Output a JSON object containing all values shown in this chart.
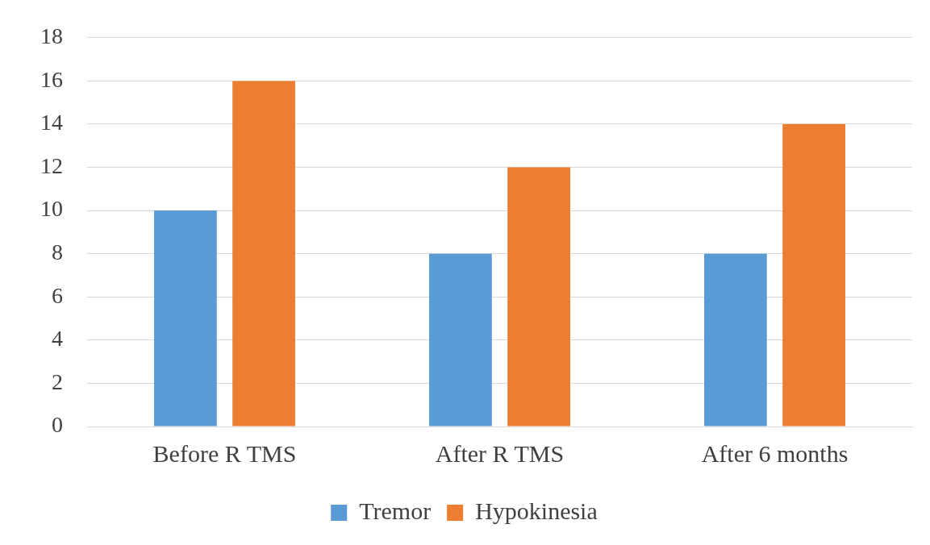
{
  "chart_data": {
    "type": "bar",
    "categories": [
      "Before R TMS",
      "After R TMS",
      "After 6 months"
    ],
    "series": [
      {
        "name": "Tremor",
        "color": "#5b9bd5",
        "values": [
          10,
          8,
          8
        ]
      },
      {
        "name": "Hypokinesia",
        "color": "#ed7d31",
        "values": [
          16,
          12,
          14
        ]
      }
    ],
    "ylim": [
      0,
      18
    ],
    "yticks": [
      0,
      2,
      4,
      6,
      8,
      10,
      12,
      14,
      16,
      18
    ],
    "grid": "y",
    "legend": "bottom"
  }
}
